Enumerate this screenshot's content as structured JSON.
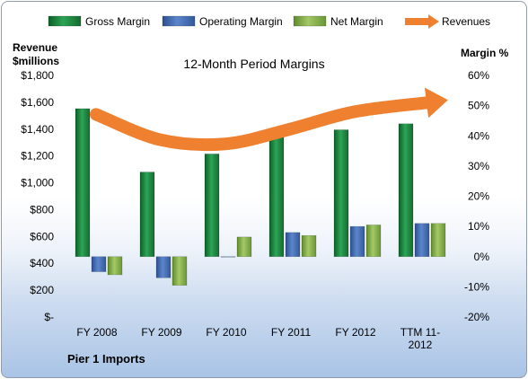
{
  "chart_data": {
    "type": "bar",
    "title": "12-Month Period Margins",
    "company": "Pier 1 Imports",
    "categories": [
      "FY 2008",
      "FY 2009",
      "FY 2010",
      "FY 2011",
      "FY 2012",
      "TTM 11-2012"
    ],
    "series": [
      {
        "name": "Gross Margin",
        "axis": "right",
        "values": [
          49,
          28,
          34,
          40,
          42,
          44
        ],
        "color": "#1f8f45"
      },
      {
        "name": "Operating Margin",
        "axis": "right",
        "values": [
          -5,
          -7,
          0,
          8,
          10,
          11
        ],
        "color": "#4a72b8"
      },
      {
        "name": "Net Margin",
        "axis": "right",
        "values": [
          -6,
          -9.5,
          6.5,
          7,
          10.5,
          11
        ],
        "color": "#8ab44c"
      },
      {
        "name": "Revenues",
        "type": "line",
        "axis": "left",
        "values": [
          1510,
          1320,
          1290,
          1400,
          1530,
          1600
        ],
        "color": "#ee8030"
      }
    ],
    "y_left": {
      "label_line1": "Revenue",
      "label_line2": "$millions",
      "ylim": [
        0,
        1800
      ],
      "ticks": [
        "$-",
        "$200",
        "$400",
        "$600",
        "$800",
        "$1,000",
        "$1,200",
        "$1,400",
        "$1,600",
        "$1,800"
      ]
    },
    "y_right": {
      "label": "Margin %",
      "ylim": [
        -20,
        60
      ],
      "ticks": [
        "-20%",
        "-10%",
        "0%",
        "10%",
        "20%",
        "30%",
        "40%",
        "50%",
        "60%"
      ]
    },
    "legend": {
      "placement": "top"
    },
    "grid": false
  }
}
